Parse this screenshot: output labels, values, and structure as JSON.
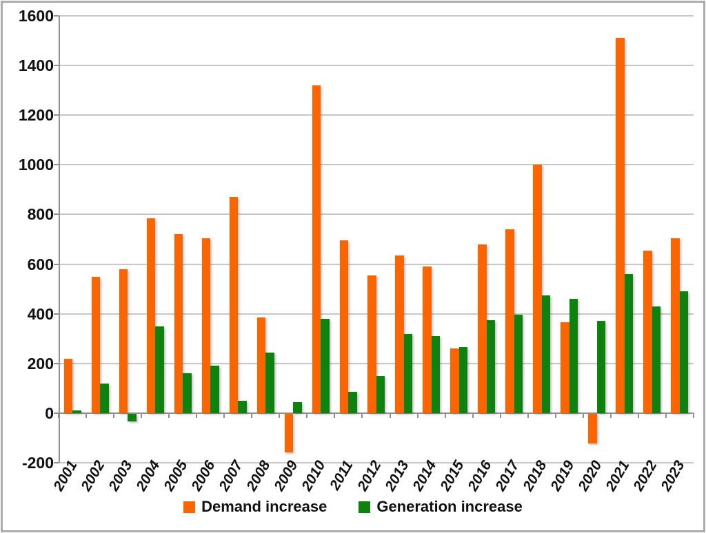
{
  "chart_data": {
    "type": "bar",
    "title": "",
    "xlabel": "",
    "ylabel": "",
    "categories": [
      "2001",
      "2002",
      "2003",
      "2004",
      "2005",
      "2006",
      "2007",
      "2008",
      "2009",
      "2010",
      "2011",
      "2012",
      "2013",
      "2014",
      "2015",
      "2016",
      "2017",
      "2018",
      "2019",
      "2020",
      "2021",
      "2022",
      "2023"
    ],
    "series": [
      {
        "name": "Demand increase",
        "color": "#fa6502",
        "values": [
          220,
          550,
          580,
          785,
          720,
          705,
          870,
          385,
          -155,
          1320,
          695,
          555,
          635,
          590,
          260,
          680,
          740,
          1000,
          365,
          -120,
          1510,
          655,
          705
        ]
      },
      {
        "name": "Generation increase",
        "color": "#0e810e",
        "values": [
          10,
          120,
          -30,
          350,
          160,
          190,
          50,
          245,
          45,
          380,
          85,
          150,
          320,
          310,
          265,
          375,
          395,
          475,
          460,
          370,
          560,
          430,
          490
        ]
      }
    ],
    "ylim": [
      -200,
      1600
    ],
    "yticks": [
      -200,
      0,
      200,
      400,
      600,
      800,
      1000,
      1200,
      1400,
      1600
    ],
    "grid": true,
    "legend_position": "bottom",
    "x_label_rotation_deg": -60
  },
  "colors": {
    "gridline": "#c6c6c6",
    "axis": "#919191",
    "text": "#111111",
    "border": "#acacac",
    "background": "#ffffff"
  }
}
